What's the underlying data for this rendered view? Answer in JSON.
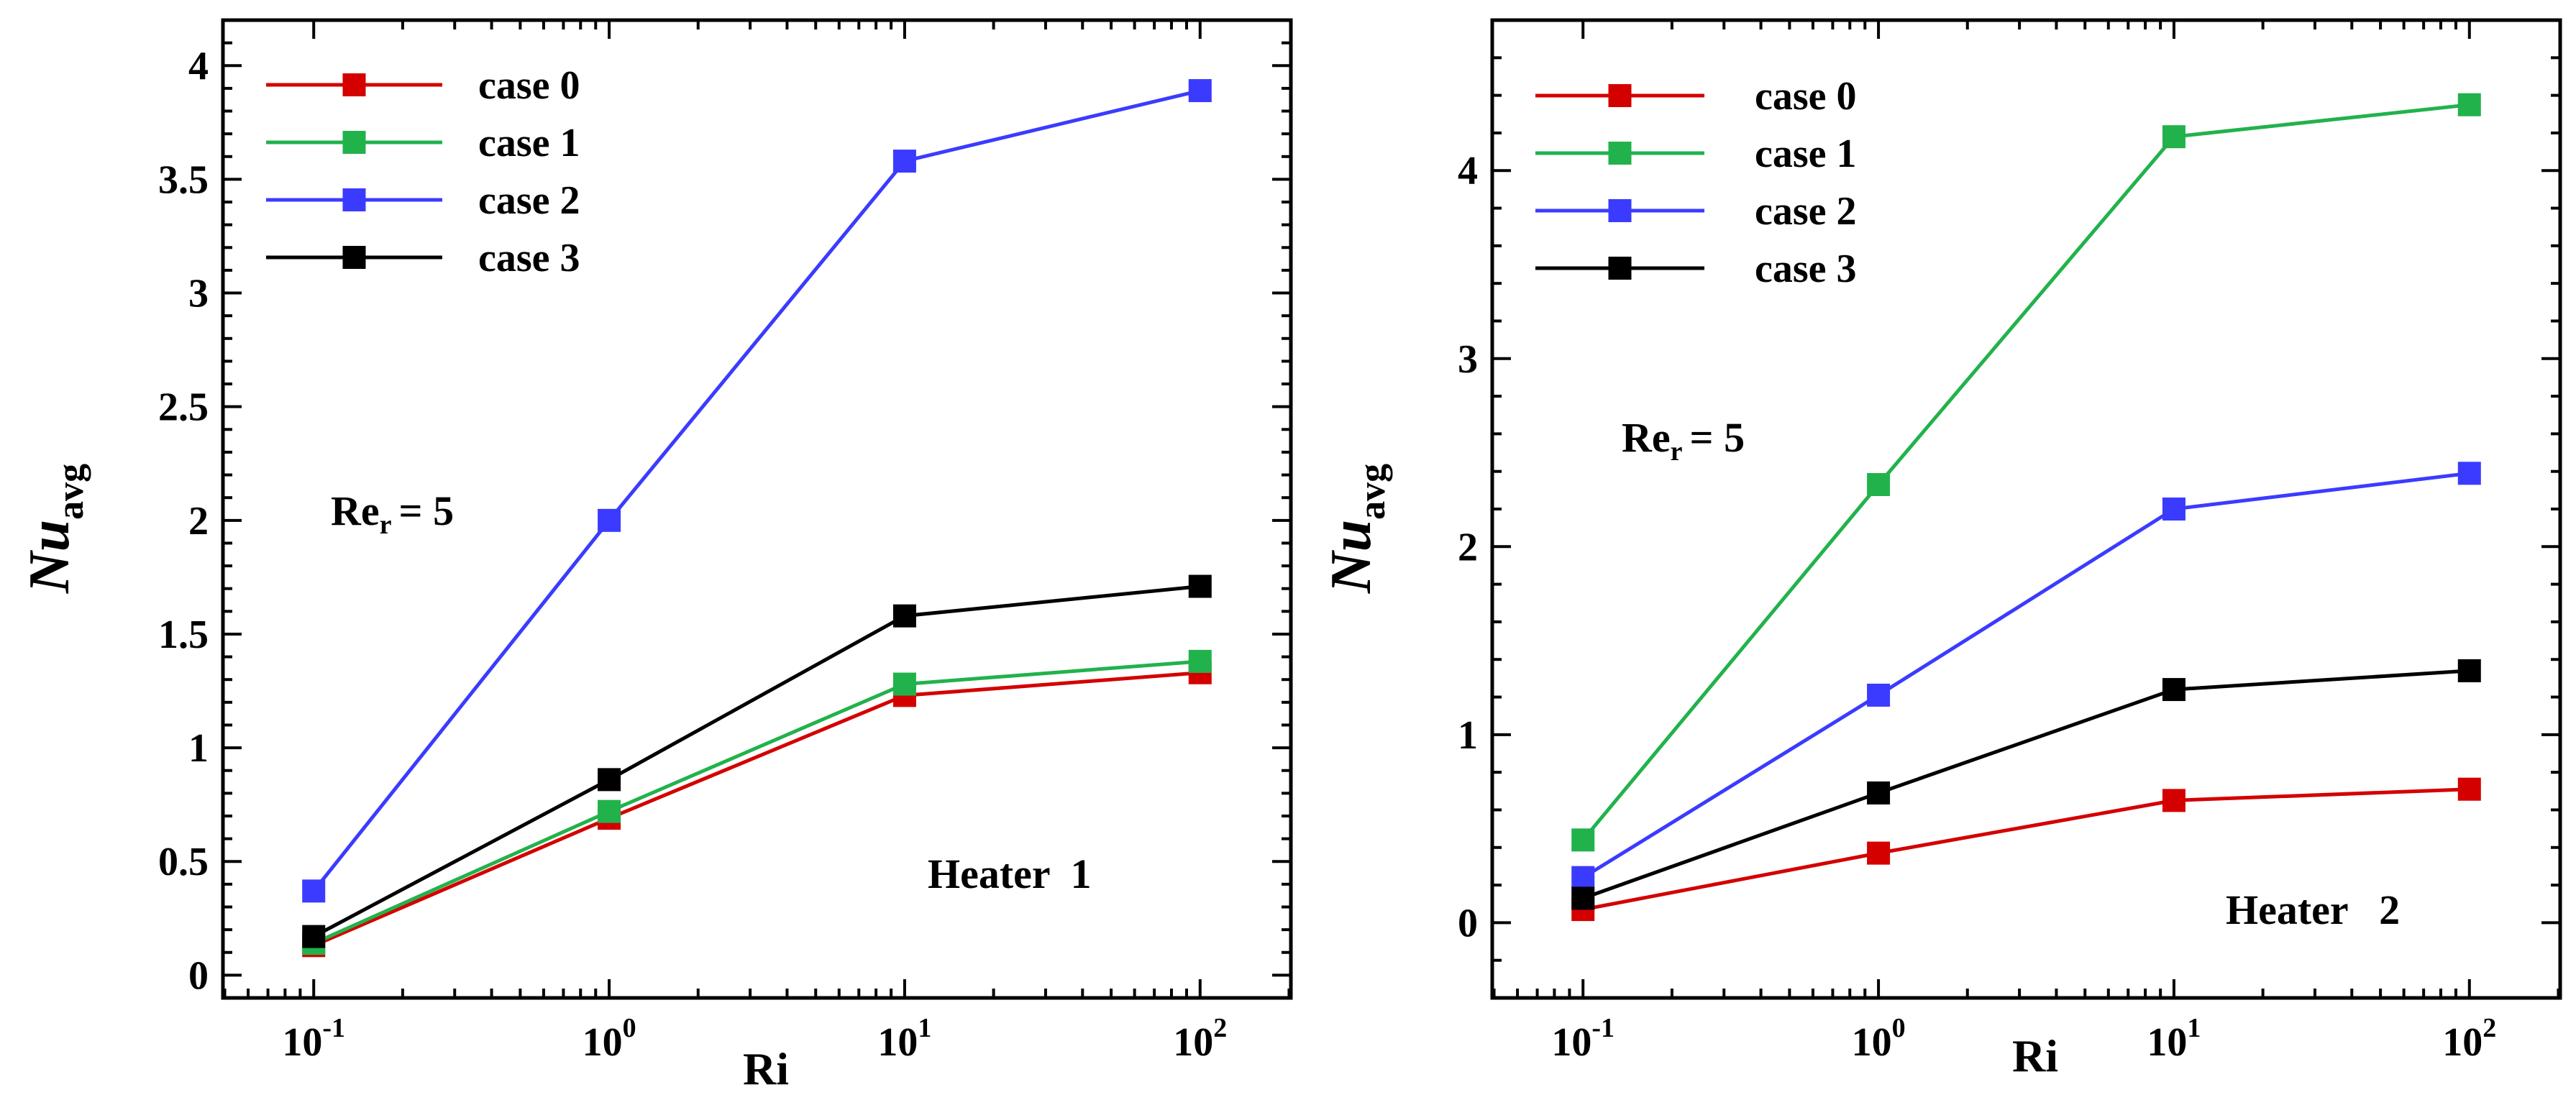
{
  "chart_data": [
    {
      "type": "line",
      "xscale": "log",
      "categories": [
        "10^-1",
        "10^0",
        "10^1",
        "10^2"
      ],
      "x": [
        0.1,
        1,
        10,
        100
      ],
      "xticks": [
        {
          "base": "10",
          "exp": "-1"
        },
        {
          "base": "10",
          "exp": "0"
        },
        {
          "base": "10",
          "exp": "1"
        },
        {
          "base": "10",
          "exp": "2"
        }
      ],
      "xlabel": "Ri",
      "ylabel": {
        "main": "Nu",
        "sub": "avg"
      },
      "ylim": [
        -0.1,
        4.2
      ],
      "yticks": [
        "0",
        "0.5",
        "1",
        "1.5",
        "2",
        "2.5",
        "3",
        "3.5",
        "4"
      ],
      "yticks_values": [
        0,
        0.5,
        1,
        1.5,
        2,
        2.5,
        3,
        3.5,
        4
      ],
      "series": [
        {
          "name": "case 0",
          "color": "#d40000",
          "values": [
            0.13,
            0.69,
            1.23,
            1.33
          ]
        },
        {
          "name": "case 1",
          "color": "#22b24c",
          "values": [
            0.14,
            0.72,
            1.28,
            1.38
          ]
        },
        {
          "name": "case 2",
          "color": "#3b3bff",
          "values": [
            0.37,
            2.0,
            3.58,
            3.89
          ]
        },
        {
          "name": "case 3",
          "color": "#000000",
          "values": [
            0.17,
            0.86,
            1.58,
            1.71
          ]
        }
      ],
      "annotations": {
        "re_main": "Re",
        "re_sub": "r",
        "re_value": "= 5",
        "heater": "Heater  1"
      }
    },
    {
      "type": "line",
      "xscale": "log",
      "categories": [
        "10^-1",
        "10^0",
        "10^1",
        "10^2"
      ],
      "x": [
        0.1,
        1,
        10,
        100
      ],
      "xticks": [
        {
          "base": "10",
          "exp": "-1"
        },
        {
          "base": "10",
          "exp": "0"
        },
        {
          "base": "10",
          "exp": "1"
        },
        {
          "base": "10",
          "exp": "2"
        }
      ],
      "xlabel": "Ri",
      "ylabel": {
        "main": "Nu",
        "sub": "avg"
      },
      "ylim": [
        -0.4,
        4.8
      ],
      "yticks": [
        "0",
        "1",
        "2",
        "3",
        "4"
      ],
      "yticks_values": [
        0,
        1,
        2,
        3,
        4
      ],
      "series": [
        {
          "name": "case 0",
          "color": "#d40000",
          "values": [
            0.07,
            0.37,
            0.65,
            0.71
          ]
        },
        {
          "name": "case 1",
          "color": "#22b24c",
          "values": [
            0.44,
            2.33,
            4.18,
            4.35
          ]
        },
        {
          "name": "case 2",
          "color": "#3b3bff",
          "values": [
            0.24,
            1.21,
            2.2,
            2.39
          ]
        },
        {
          "name": "case 3",
          "color": "#000000",
          "values": [
            0.13,
            0.69,
            1.24,
            1.34
          ]
        }
      ],
      "annotations": {
        "re_main": "Re",
        "re_sub": "r",
        "re_value": "= 5",
        "heater": "Heater   2"
      }
    }
  ]
}
